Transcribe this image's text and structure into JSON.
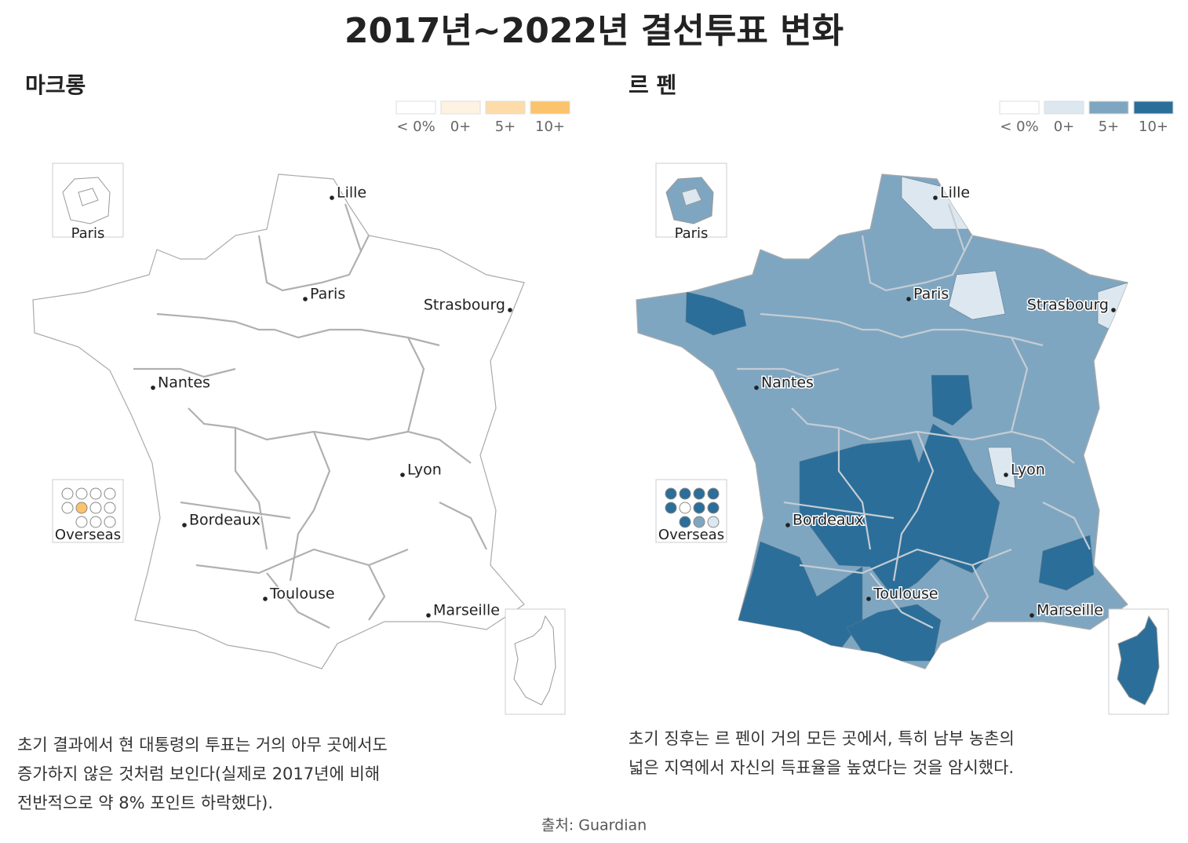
{
  "title": "2017년~2022년 결선투표 변화",
  "panels": [
    {
      "heading": "마크롱",
      "legend": {
        "labels": [
          "< 0%",
          "0+",
          "5+",
          "10+"
        ],
        "colors": [
          "#ffffff",
          "#fef2e2",
          "#fddcaa",
          "#fbc36b"
        ]
      },
      "caption": [
        "초기 결과에서 현 대통령의 투표는 거의 아무 곳에서도",
        "증가하지 않은 것처럼 보인다(실제로 2017년에 비해",
        "전반적으로 약 8% 포인트 하락했다)."
      ]
    },
    {
      "heading": "르 펜",
      "legend": {
        "labels": [
          "< 0%",
          "0+",
          "5+",
          "10+"
        ],
        "colors": [
          "#ffffff",
          "#dce7ef",
          "#7fa6c1",
          "#2b6e99"
        ]
      },
      "caption": [
        "초기 징후는 르 펜이 거의 모든 곳에서, 특히 남부 농촌의",
        "넓은 지역에서 자신의 득표율을 높였다는 것을 암시했다."
      ]
    }
  ],
  "cities": [
    "Lille",
    "Paris",
    "Strasbourg",
    "Nantes",
    "Lyon",
    "Bordeaux",
    "Toulouse",
    "Marseille"
  ],
  "insets": [
    "Paris",
    "Overseas"
  ],
  "source": "출처: Guardian"
}
